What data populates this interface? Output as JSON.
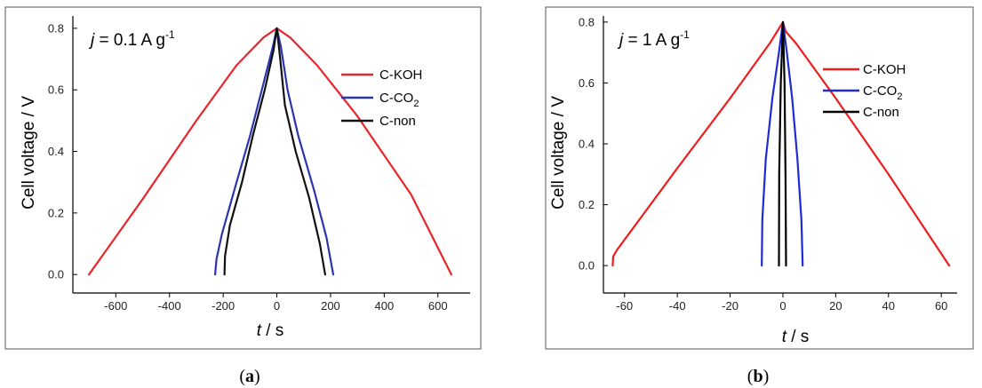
{
  "chart_data": [
    {
      "type": "line",
      "panel_label": {
        "pre": "(",
        "letter": "a",
        "post": ")"
      },
      "annotation": {
        "j": "j",
        "rest": " = 0.1 A g",
        "sup": "-1"
      },
      "xlabel": {
        "var": "t",
        "unit": " / s"
      },
      "ylabel": "Cell voltage / V",
      "xlim": [
        -760,
        720
      ],
      "ylim": [
        -0.06,
        0.84
      ],
      "xticks": [
        -600,
        -400,
        -200,
        0,
        200,
        400,
        600
      ],
      "yticks": [
        0.0,
        0.2,
        0.4,
        0.6,
        0.8
      ],
      "ytick_labels": [
        "0.0",
        "0.2",
        "0.4",
        "0.6",
        "0.8"
      ],
      "legend_position": "top-right",
      "series": [
        {
          "name": "C-KOH",
          "name_sub": "",
          "color": "#e8262b",
          "points": [
            [
              -700,
              0.0
            ],
            [
              -500,
              0.245
            ],
            [
              -300,
              0.5
            ],
            [
              -150,
              0.68
            ],
            [
              -50,
              0.77
            ],
            [
              0,
              0.8
            ],
            [
              50,
              0.77
            ],
            [
              150,
              0.68
            ],
            [
              300,
              0.515
            ],
            [
              500,
              0.26
            ],
            [
              650,
              0.0
            ]
          ]
        },
        {
          "name": "C-CO",
          "name_sub": "2",
          "color": "#2b35b0",
          "points": [
            [
              -230,
              0.0
            ],
            [
              -225,
              0.05
            ],
            [
              -205,
              0.13
            ],
            [
              -150,
              0.3
            ],
            [
              -100,
              0.45
            ],
            [
              -50,
              0.62
            ],
            [
              -15,
              0.74
            ],
            [
              0,
              0.8
            ],
            [
              15,
              0.74
            ],
            [
              40,
              0.6
            ],
            [
              80,
              0.45
            ],
            [
              140,
              0.27
            ],
            [
              185,
              0.12
            ],
            [
              210,
              0.0
            ]
          ]
        },
        {
          "name": "C-non",
          "name_sub": "",
          "color": "#111111",
          "points": [
            [
              -195,
              0.0
            ],
            [
              -193,
              0.06
            ],
            [
              -175,
              0.16
            ],
            [
              -130,
              0.3
            ],
            [
              -90,
              0.45
            ],
            [
              -45,
              0.6
            ],
            [
              -12,
              0.73
            ],
            [
              0,
              0.8
            ],
            [
              10,
              0.72
            ],
            [
              30,
              0.55
            ],
            [
              70,
              0.4
            ],
            [
              120,
              0.25
            ],
            [
              160,
              0.1
            ],
            [
              180,
              0.0
            ]
          ]
        }
      ]
    },
    {
      "type": "line",
      "panel_label": {
        "pre": "(",
        "letter": "b",
        "post": ")"
      },
      "annotation": {
        "j": "j",
        "rest": " = 1 A g",
        "sup": "-1"
      },
      "xlabel": {
        "var": "t",
        "unit": " / s"
      },
      "ylabel": "Cell voltage / V",
      "xlim": [
        -68,
        66
      ],
      "ylim": [
        -0.09,
        0.82
      ],
      "xticks": [
        -60,
        -40,
        -20,
        0,
        20,
        40,
        60
      ],
      "yticks": [
        0.0,
        0.2,
        0.4,
        0.6,
        0.8
      ],
      "ytick_labels": [
        "0.0",
        "0.2",
        "0.4",
        "0.6",
        "0.8"
      ],
      "legend_position": "top-right",
      "series": [
        {
          "name": "C-KOH",
          "name_sub": "",
          "color": "#ee1c1c",
          "points": [
            [
              -64.5,
              0.0
            ],
            [
              -64.3,
              0.03
            ],
            [
              -63,
              0.05
            ],
            [
              -40,
              0.32
            ],
            [
              -20,
              0.55
            ],
            [
              -5,
              0.73
            ],
            [
              0,
              0.8
            ],
            [
              1,
              0.77
            ],
            [
              5,
              0.73
            ],
            [
              20,
              0.55
            ],
            [
              40,
              0.3
            ],
            [
              63,
              0.0
            ]
          ]
        },
        {
          "name": "C-CO",
          "name_sub": "2",
          "color": "#1f2bd6",
          "points": [
            [
              -8,
              0.0
            ],
            [
              -7.8,
              0.15
            ],
            [
              -6.5,
              0.35
            ],
            [
              -4,
              0.55
            ],
            [
              -1.5,
              0.7
            ],
            [
              0,
              0.8
            ],
            [
              1.5,
              0.7
            ],
            [
              3.5,
              0.55
            ],
            [
              5.5,
              0.35
            ],
            [
              7,
              0.15
            ],
            [
              7.5,
              0.0
            ]
          ]
        },
        {
          "name": "C-non",
          "name_sub": "",
          "color": "#000000",
          "points": [
            [
              -1.5,
              0.0
            ],
            [
              -1.4,
              0.3
            ],
            [
              -0.8,
              0.6
            ],
            [
              0,
              0.8
            ],
            [
              0.6,
              0.6
            ],
            [
              1.0,
              0.3
            ],
            [
              1.2,
              0.0
            ]
          ]
        }
      ]
    }
  ]
}
